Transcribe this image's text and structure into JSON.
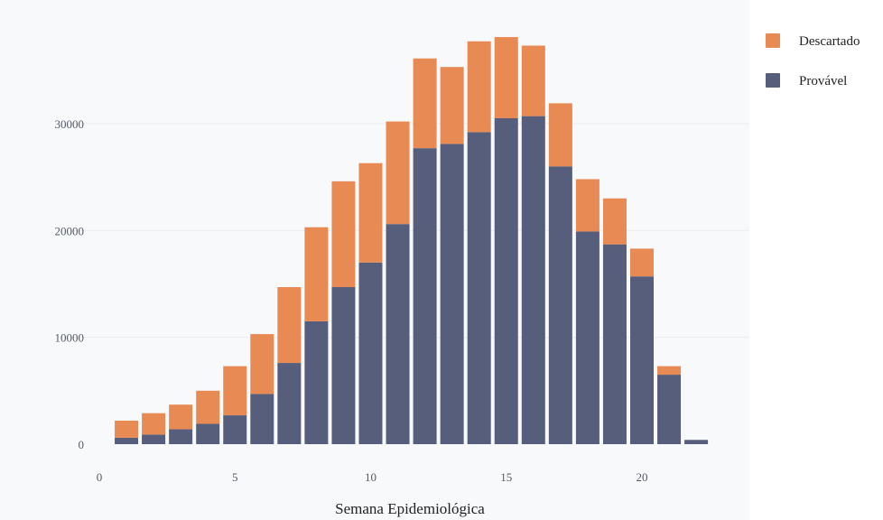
{
  "chart_data": {
    "type": "bar",
    "barmode": "stack",
    "x": [
      1,
      2,
      3,
      4,
      5,
      6,
      7,
      8,
      9,
      10,
      11,
      12,
      13,
      14,
      15,
      16,
      17,
      18,
      19,
      20,
      21,
      22
    ],
    "series": [
      {
        "name": "Provável",
        "color": "#565e7c",
        "values": [
          600,
          900,
          1400,
          1900,
          2700,
          4700,
          7600,
          11500,
          14700,
          17000,
          20600,
          27700,
          28100,
          29200,
          30500,
          30700,
          26000,
          19900,
          18700,
          15700,
          6500,
          400
        ]
      },
      {
        "name": "Descartado",
        "color": "#e88a54",
        "values": [
          1600,
          2000,
          2300,
          3100,
          4600,
          5600,
          7100,
          8800,
          9900,
          9300,
          9600,
          8400,
          7200,
          8500,
          7600,
          6600,
          5900,
          4900,
          4300,
          2600,
          800,
          0
        ]
      }
    ],
    "xlabel": "Semana Epidemiológica",
    "ylabel": "",
    "xlim": [
      0,
      23.3
    ],
    "ylim": [
      0,
      40000
    ],
    "xticks": [
      0,
      5,
      10,
      15,
      20
    ],
    "xtick_labels": [
      "0",
      "5",
      "10",
      "15",
      "20"
    ],
    "yticks": [
      0,
      10000,
      20000,
      30000
    ],
    "ytick_labels": [
      "0",
      "10000",
      "20000",
      "30000"
    ],
    "grid": true,
    "legend": {
      "position": "top-right",
      "entries": [
        {
          "label": "Descartado",
          "color": "#e88a54"
        },
        {
          "label": "Provável",
          "color": "#565e7c"
        }
      ]
    },
    "plot_background": "#f8f9fb"
  }
}
